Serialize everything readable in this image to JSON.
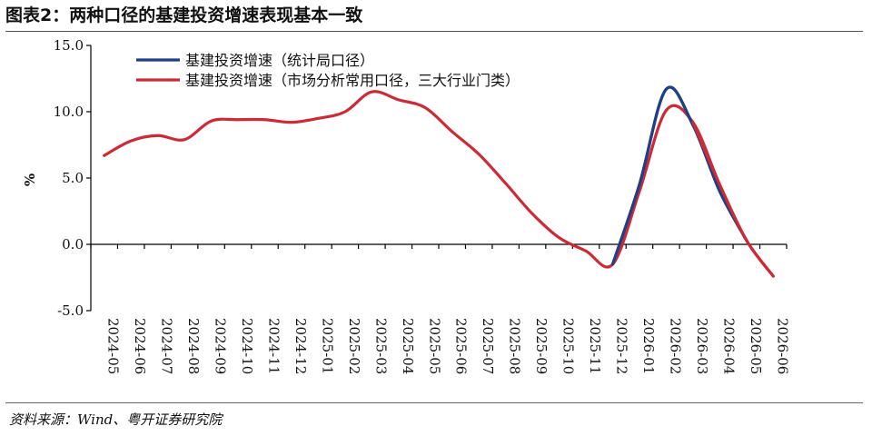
{
  "header": {
    "title": "图表2：两种口径的基建投资增速表现基本一致"
  },
  "footer": {
    "source": "资料来源：Wind、粤开证券研究院"
  },
  "colors": {
    "series_stat": "#1f3f87",
    "series_market": "#cc2a36",
    "axis": "#000000"
  },
  "chart_data": {
    "type": "line",
    "ylabel": "%",
    "ylim": [
      -5.0,
      15.0
    ],
    "yticks": [
      "-5.0",
      "0.0",
      "5.0",
      "10.0",
      "15.0"
    ],
    "ytick_values": [
      -5,
      0,
      5,
      10,
      15
    ],
    "grid": false,
    "legend_position": "top-center",
    "categories": [
      "2024-05",
      "2024-06",
      "2024-07",
      "2024-08",
      "2024-09",
      "2024-10",
      "2024-11",
      "2024-12",
      "2025-01",
      "2025-02",
      "2025-03",
      "2025-04",
      "2025-05",
      "2025-06",
      "2025-07",
      "2025-08",
      "2025-09",
      "2025-10",
      "2025-11",
      "2025-12",
      "2026-01",
      "2026-02",
      "2026-03",
      "2026-04",
      "2026-05",
      "2026-06"
    ],
    "series": [
      {
        "name": "基建投资增速（统计局口径）",
        "color": "#1f3f87",
        "values": [
          null,
          null,
          null,
          null,
          null,
          null,
          null,
          null,
          null,
          null,
          null,
          null,
          null,
          null,
          null,
          null,
          null,
          null,
          null,
          -1.5,
          4.5,
          11.7,
          9.0,
          4.0,
          0.3,
          null
        ]
      },
      {
        "name": "基建投资增速（市场分析常用口径，三大行业门类）",
        "color": "#cc2a36",
        "values": [
          6.7,
          7.8,
          8.2,
          7.9,
          9.3,
          9.4,
          9.4,
          9.2,
          9.5,
          10.0,
          11.5,
          10.9,
          10.3,
          8.5,
          6.8,
          4.6,
          2.3,
          0.5,
          -0.5,
          -1.5,
          4.0,
          10.1,
          9.2,
          4.5,
          0.3,
          -2.4
        ]
      }
    ]
  }
}
